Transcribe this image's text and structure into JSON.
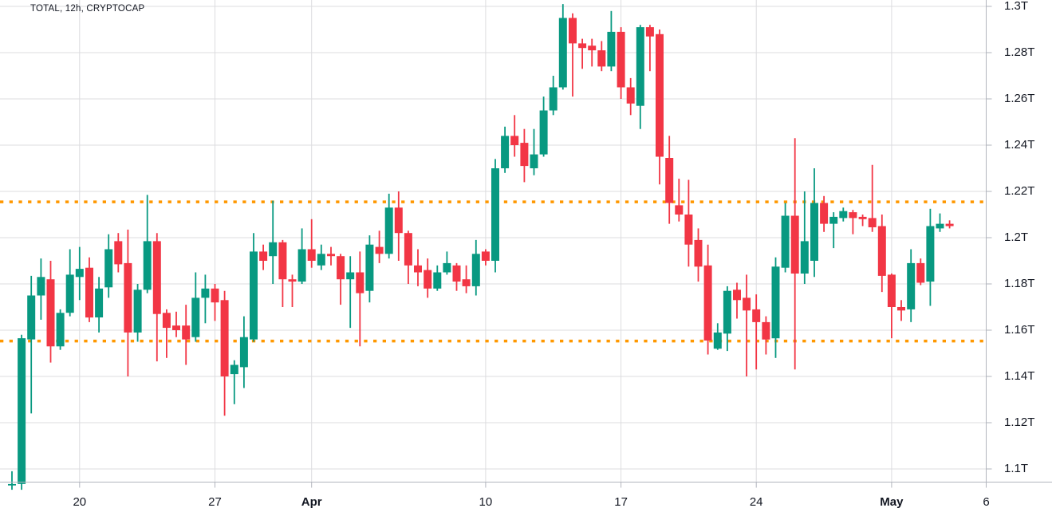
{
  "colors": {
    "up": "#089981",
    "down": "#F23645",
    "level_line": "#FF9800",
    "grid": "#DCDCDF",
    "axis_line": "#B2B5BE",
    "axis_text": "#131722",
    "background": "#FFFFFF"
  },
  "chart_data": {
    "type": "candlestick",
    "title": "TOTAL, 12h, CRYPTOCAP",
    "symbol": "TOTAL",
    "interval": "12h",
    "source": "CRYPTOCAP",
    "value_unit": "trillions USD",
    "y_axis": {
      "side": "right",
      "range_top": 1.3,
      "range_bottom": 1.085,
      "ticks": [
        {
          "v": 1.3,
          "label": "1.3T"
        },
        {
          "v": 1.28,
          "label": "1.28T"
        },
        {
          "v": 1.26,
          "label": "1.26T"
        },
        {
          "v": 1.24,
          "label": "1.24T"
        },
        {
          "v": 1.22,
          "label": "1.22T"
        },
        {
          "v": 1.2,
          "label": "1.2T"
        },
        {
          "v": 1.18,
          "label": "1.18T"
        },
        {
          "v": 1.16,
          "label": "1.16T"
        },
        {
          "v": 1.14,
          "label": "1.14T"
        },
        {
          "v": 1.12,
          "label": "1.12T"
        },
        {
          "v": 1.1,
          "label": "1.1T"
        }
      ]
    },
    "x_axis": {
      "side": "bottom",
      "ticks": [
        {
          "i": 7,
          "label": "20",
          "bold": false
        },
        {
          "i": 21,
          "label": "27",
          "bold": false
        },
        {
          "i": 31,
          "label": "Apr",
          "bold": true
        },
        {
          "i": 49,
          "label": "10",
          "bold": false
        },
        {
          "i": 63,
          "label": "17",
          "bold": false
        },
        {
          "i": 77,
          "label": "24",
          "bold": false
        },
        {
          "i": 91,
          "label": "May",
          "bold": true
        },
        {
          "i": 101,
          "label": "6",
          "bold": false
        }
      ]
    },
    "levels": [
      {
        "value": 1.2155,
        "role": "resistance",
        "style": "dotted"
      },
      {
        "value": 1.1553,
        "role": "support",
        "style": "dotted"
      }
    ],
    "candles_format": [
      "open",
      "high",
      "low",
      "close"
    ],
    "candles": [
      [
        1.093,
        1.099,
        1.091,
        1.0935
      ],
      [
        1.0935,
        1.158,
        1.091,
        1.1565
      ],
      [
        1.156,
        1.1835,
        1.124,
        1.175
      ],
      [
        1.175,
        1.191,
        1.1645,
        1.183
      ],
      [
        1.182,
        1.19,
        1.146,
        1.153
      ],
      [
        1.153,
        1.169,
        1.1515,
        1.1675
      ],
      [
        1.1675,
        1.195,
        1.166,
        1.184
      ],
      [
        1.183,
        1.196,
        1.173,
        1.1865
      ],
      [
        1.187,
        1.1915,
        1.1635,
        1.1655
      ],
      [
        1.1655,
        1.183,
        1.159,
        1.178
      ],
      [
        1.1785,
        1.2015,
        1.174,
        1.195
      ],
      [
        1.1985,
        1.202,
        1.185,
        1.1885
      ],
      [
        1.189,
        1.2035,
        1.14,
        1.159
      ],
      [
        1.159,
        1.18,
        1.155,
        1.1775
      ],
      [
        1.1775,
        1.2185,
        1.176,
        1.1985
      ],
      [
        1.1985,
        1.202,
        1.1465,
        1.167
      ],
      [
        1.1675,
        1.169,
        1.148,
        1.161
      ],
      [
        1.162,
        1.168,
        1.157,
        1.16
      ],
      [
        1.162,
        1.171,
        1.145,
        1.156
      ],
      [
        1.157,
        1.185,
        1.155,
        1.174
      ],
      [
        1.174,
        1.184,
        1.163,
        1.178
      ],
      [
        1.178,
        1.18,
        1.164,
        1.172
      ],
      [
        1.173,
        1.177,
        1.123,
        1.14
      ],
      [
        1.141,
        1.147,
        1.128,
        1.145
      ],
      [
        1.144,
        1.166,
        1.135,
        1.157
      ],
      [
        1.156,
        1.202,
        1.155,
        1.194
      ],
      [
        1.194,
        1.197,
        1.186,
        1.19
      ],
      [
        1.192,
        1.216,
        1.18,
        1.198
      ],
      [
        1.198,
        1.199,
        1.17,
        1.182
      ],
      [
        1.182,
        1.184,
        1.17,
        1.181
      ],
      [
        1.181,
        1.204,
        1.18,
        1.195
      ],
      [
        1.195,
        1.208,
        1.187,
        1.19
      ],
      [
        1.188,
        1.197,
        1.186,
        1.193
      ],
      [
        1.193,
        1.196,
        1.188,
        1.192
      ],
      [
        1.192,
        1.193,
        1.171,
        1.182
      ],
      [
        1.182,
        1.192,
        1.161,
        1.185
      ],
      [
        1.185,
        1.194,
        1.153,
        1.176
      ],
      [
        1.177,
        1.201,
        1.172,
        1.197
      ],
      [
        1.196,
        1.203,
        1.189,
        1.193
      ],
      [
        1.193,
        1.219,
        1.191,
        1.213
      ],
      [
        1.213,
        1.22,
        1.19,
        1.202
      ],
      [
        1.202,
        1.203,
        1.18,
        1.188
      ],
      [
        1.188,
        1.195,
        1.179,
        1.185
      ],
      [
        1.186,
        1.191,
        1.174,
        1.178
      ],
      [
        1.178,
        1.188,
        1.177,
        1.185
      ],
      [
        1.185,
        1.194,
        1.184,
        1.189
      ],
      [
        1.188,
        1.189,
        1.177,
        1.181
      ],
      [
        1.182,
        1.188,
        1.176,
        1.179
      ],
      [
        1.179,
        1.199,
        1.175,
        1.193
      ],
      [
        1.194,
        1.195,
        1.188,
        1.19
      ],
      [
        1.19,
        1.234,
        1.185,
        1.23
      ],
      [
        1.23,
        1.248,
        1.228,
        1.244
      ],
      [
        1.244,
        1.253,
        1.235,
        1.24
      ],
      [
        1.241,
        1.247,
        1.224,
        1.231
      ],
      [
        1.23,
        1.247,
        1.227,
        1.236
      ],
      [
        1.236,
        1.261,
        1.235,
        1.255
      ],
      [
        1.255,
        1.27,
        1.253,
        1.265
      ],
      [
        1.265,
        1.301,
        1.264,
        1.295
      ],
      [
        1.295,
        1.297,
        1.261,
        1.284
      ],
      [
        1.284,
        1.286,
        1.273,
        1.282
      ],
      [
        1.283,
        1.286,
        1.274,
        1.281
      ],
      [
        1.281,
        1.285,
        1.272,
        1.274
      ],
      [
        1.274,
        1.298,
        1.272,
        1.289
      ],
      [
        1.289,
        1.291,
        1.26,
        1.265
      ],
      [
        1.265,
        1.269,
        1.253,
        1.258
      ],
      [
        1.257,
        1.292,
        1.247,
        1.291
      ],
      [
        1.291,
        1.292,
        1.272,
        1.287
      ],
      [
        1.288,
        1.29,
        1.223,
        1.235
      ],
      [
        1.2345,
        1.244,
        1.206,
        1.215
      ],
      [
        1.214,
        1.2255,
        1.207,
        1.21
      ],
      [
        1.21,
        1.225,
        1.1875,
        1.197
      ],
      [
        1.199,
        1.204,
        1.181,
        1.1875
      ],
      [
        1.188,
        1.197,
        1.1495,
        1.1555
      ],
      [
        1.152,
        1.163,
        1.1515,
        1.159
      ],
      [
        1.1585,
        1.179,
        1.151,
        1.177
      ],
      [
        1.1775,
        1.1805,
        1.165,
        1.173
      ],
      [
        1.174,
        1.184,
        1.14,
        1.1685
      ],
      [
        1.169,
        1.1755,
        1.143,
        1.1635
      ],
      [
        1.1635,
        1.166,
        1.1495,
        1.156
      ],
      [
        1.1565,
        1.1915,
        1.148,
        1.1875
      ],
      [
        1.187,
        1.215,
        1.185,
        1.2095
      ],
      [
        1.2095,
        1.243,
        1.143,
        1.1845
      ],
      [
        1.1845,
        1.22,
        1.18,
        1.1985
      ],
      [
        1.19,
        1.23,
        1.183,
        1.215
      ],
      [
        1.215,
        1.218,
        1.2025,
        1.206
      ],
      [
        1.206,
        1.211,
        1.1955,
        1.209
      ],
      [
        1.2085,
        1.213,
        1.207,
        1.2115
      ],
      [
        1.211,
        1.212,
        1.2015,
        1.2085
      ],
      [
        1.209,
        1.21,
        1.205,
        1.208
      ],
      [
        1.2085,
        1.2315,
        1.2025,
        1.2045
      ],
      [
        1.205,
        1.21,
        1.1765,
        1.1835
      ],
      [
        1.184,
        1.1845,
        1.1565,
        1.17
      ],
      [
        1.17,
        1.173,
        1.164,
        1.1685
      ],
      [
        1.169,
        1.195,
        1.1635,
        1.189
      ],
      [
        1.189,
        1.191,
        1.1795,
        1.1805
      ],
      [
        1.181,
        1.2125,
        1.1705,
        1.205
      ],
      [
        1.204,
        1.2105,
        1.2025,
        1.206
      ],
      [
        1.206,
        1.2075,
        1.204,
        1.205
      ]
    ]
  }
}
